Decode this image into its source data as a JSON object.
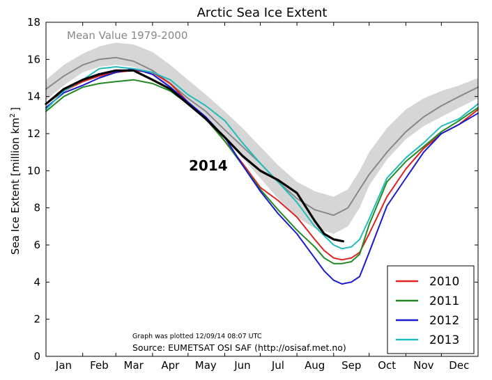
{
  "chart_data": {
    "type": "line",
    "title": "Arctic Sea Ice Extent",
    "ylabel": "Sea Ice Extent [million km",
    "ylabel_sup": "2",
    "ylabel_end": "]",
    "xlabel": "",
    "ylim": [
      0,
      18
    ],
    "xlim": [
      0,
      365
    ],
    "yticks": [
      0,
      2,
      4,
      6,
      8,
      10,
      12,
      14,
      16,
      18
    ],
    "ytick_labels": [
      "0",
      "2",
      "4",
      "6",
      "8",
      "10",
      "12",
      "14",
      "16",
      "18"
    ],
    "month_labels": [
      "Jan",
      "Feb",
      "Mar",
      "Apr",
      "May",
      "Jun",
      "Jul",
      "Aug",
      "Sep",
      "Oct",
      "Nov",
      "Dec"
    ],
    "month_label_days": [
      15,
      45,
      74,
      105,
      135,
      166,
      196,
      227,
      258,
      288,
      319,
      349
    ],
    "month_tick_days": [
      0,
      31,
      59,
      90,
      120,
      151,
      181,
      212,
      243,
      273,
      304,
      334,
      365
    ],
    "band": {
      "name": "Mean Value 1979-2000 range",
      "color": "#d6d6d6",
      "x": [
        0,
        15,
        31,
        45,
        59,
        74,
        90,
        105,
        120,
        135,
        151,
        166,
        181,
        196,
        212,
        227,
        243,
        255,
        265,
        273,
        288,
        304,
        319,
        334,
        349,
        365
      ],
      "upper": [
        14.9,
        15.7,
        16.3,
        16.7,
        16.9,
        16.8,
        16.4,
        15.7,
        14.9,
        14.1,
        13.2,
        12.3,
        11.3,
        10.3,
        9.4,
        8.9,
        8.6,
        9.0,
        10.0,
        11.0,
        12.3,
        13.3,
        13.9,
        14.3,
        14.6,
        15.0
      ],
      "lower": [
        13.8,
        14.6,
        15.3,
        15.6,
        15.7,
        15.6,
        15.1,
        14.4,
        13.6,
        12.7,
        11.7,
        10.7,
        9.6,
        8.5,
        7.5,
        6.9,
        6.6,
        7.0,
        8.0,
        9.2,
        10.6,
        11.7,
        12.4,
        12.9,
        13.4,
        13.9
      ]
    },
    "series": [
      {
        "name": "Mean Value 1979-2000",
        "color": "#888888",
        "width": 2,
        "x": [
          0,
          15,
          31,
          45,
          59,
          74,
          90,
          105,
          120,
          135,
          151,
          166,
          181,
          196,
          212,
          227,
          243,
          255,
          265,
          273,
          288,
          304,
          319,
          334,
          349,
          365
        ],
        "values": [
          14.4,
          15.1,
          15.7,
          16.0,
          16.1,
          15.9,
          15.4,
          14.7,
          13.9,
          13.2,
          12.2,
          11.3,
          10.4,
          9.4,
          8.5,
          7.9,
          7.6,
          8.0,
          9.0,
          9.8,
          11.0,
          12.1,
          12.9,
          13.5,
          14.0,
          14.5
        ]
      },
      {
        "name": "2010",
        "color": "#dd2222",
        "width": 2,
        "x": [
          0,
          15,
          31,
          45,
          59,
          74,
          90,
          105,
          120,
          135,
          151,
          166,
          181,
          196,
          212,
          227,
          235,
          243,
          250,
          258,
          265,
          273,
          288,
          304,
          319,
          334,
          349,
          365
        ],
        "values": [
          13.6,
          14.3,
          14.8,
          15.1,
          15.3,
          15.4,
          15.3,
          14.7,
          13.7,
          12.8,
          11.6,
          10.4,
          9.1,
          8.4,
          7.5,
          6.3,
          5.7,
          5.3,
          5.2,
          5.3,
          5.6,
          6.6,
          8.6,
          10.1,
          11.2,
          12.0,
          12.5,
          13.3
        ]
      },
      {
        "name": "2011",
        "color": "#228822",
        "width": 2,
        "x": [
          0,
          15,
          31,
          45,
          59,
          74,
          90,
          105,
          120,
          135,
          151,
          166,
          181,
          196,
          212,
          227,
          235,
          243,
          250,
          258,
          265,
          273,
          288,
          304,
          319,
          334,
          349,
          365
        ],
        "values": [
          13.2,
          14.0,
          14.5,
          14.7,
          14.8,
          14.9,
          14.7,
          14.3,
          13.6,
          12.8,
          11.6,
          10.3,
          9.0,
          7.9,
          6.8,
          5.9,
          5.3,
          5.0,
          5.0,
          5.1,
          5.5,
          7.1,
          9.4,
          10.5,
          11.3,
          12.1,
          12.7,
          13.4
        ]
      },
      {
        "name": "2012",
        "color": "#1a1acc",
        "width": 2,
        "x": [
          0,
          15,
          31,
          45,
          59,
          74,
          90,
          105,
          120,
          135,
          151,
          166,
          181,
          196,
          212,
          227,
          235,
          243,
          250,
          258,
          265,
          273,
          288,
          304,
          319,
          334,
          349,
          365
        ],
        "values": [
          13.4,
          14.2,
          14.6,
          15.0,
          15.3,
          15.5,
          15.2,
          14.5,
          13.7,
          12.9,
          11.8,
          10.3,
          8.9,
          7.7,
          6.6,
          5.3,
          4.6,
          4.1,
          3.9,
          4.0,
          4.3,
          5.6,
          8.1,
          9.6,
          11.0,
          12.0,
          12.5,
          13.1
        ]
      },
      {
        "name": "2013",
        "color": "#22bbbb",
        "width": 2,
        "x": [
          0,
          15,
          31,
          45,
          59,
          74,
          90,
          105,
          120,
          135,
          151,
          166,
          181,
          196,
          212,
          227,
          235,
          243,
          250,
          258,
          265,
          273,
          288,
          304,
          319,
          334,
          349,
          365
        ],
        "values": [
          13.3,
          14.3,
          14.9,
          15.5,
          15.6,
          15.5,
          15.3,
          14.9,
          14.1,
          13.5,
          12.7,
          11.5,
          10.4,
          9.4,
          8.3,
          7.0,
          6.5,
          6.0,
          5.8,
          5.9,
          6.3,
          7.4,
          9.6,
          10.7,
          11.5,
          12.4,
          12.8,
          13.6
        ]
      },
      {
        "name": "2014",
        "color": "#000000",
        "width": 3.2,
        "x": [
          0,
          15,
          31,
          45,
          59,
          74,
          90,
          105,
          120,
          135,
          151,
          166,
          181,
          196,
          212,
          227,
          235,
          243,
          251
        ],
        "values": [
          13.6,
          14.4,
          14.9,
          15.2,
          15.4,
          15.4,
          14.9,
          14.4,
          13.6,
          12.8,
          11.8,
          10.8,
          10.0,
          9.5,
          8.8,
          7.3,
          6.6,
          6.3,
          6.2
        ]
      }
    ],
    "legend_items": [
      "2010",
      "2011",
      "2012",
      "2013"
    ],
    "legend_colors": [
      "#dd2222",
      "#228822",
      "#1a1acc",
      "#22bbbb"
    ],
    "legend_position": "bottom-right",
    "annotations": {
      "mean_label": "Mean Value 1979-2000",
      "highlight_label": "2014",
      "plotted_note": "Graph was plotted 12/09/14 08:07 UTC",
      "source_note": "Source: EUMETSAT OSI SAF (http://osisaf.met.no)"
    }
  }
}
